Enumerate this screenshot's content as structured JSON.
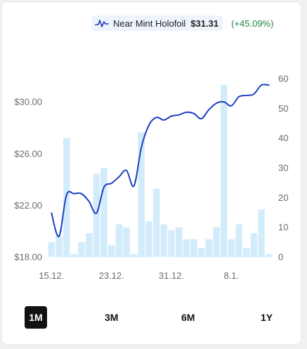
{
  "legend": {
    "series_name": "Near Mint Holofoil",
    "price": "$31.31",
    "change": "(+45.09%)",
    "icon": "line-chart-icon"
  },
  "ranges": {
    "items": [
      "1M",
      "3M",
      "6M",
      "1Y"
    ],
    "selected": "1M"
  },
  "colors": {
    "line": "#1d3fbf",
    "bar": "#d3ecfb",
    "active_button": "#111111",
    "change_positive": "#1b8a3c"
  },
  "chart_data": {
    "type": "line+bar",
    "x_ticks": [
      "15.12.",
      "23.12.",
      "31.12.",
      "8.1."
    ],
    "y_left": {
      "ticks": [
        "$18.00",
        "$22.00",
        "$26.00",
        "$30.00"
      ],
      "tick_values": [
        18,
        22,
        26,
        30
      ],
      "range": [
        18,
        31.8
      ]
    },
    "y_right": {
      "ticks": [
        "0",
        "10",
        "20",
        "30",
        "40",
        "50",
        "60"
      ],
      "tick_values": [
        0,
        10,
        20,
        30,
        40,
        50,
        60
      ],
      "range": [
        0,
        60
      ]
    },
    "series": [
      {
        "name": "Near Mint Holofoil",
        "kind": "line",
        "axis": "left",
        "values": [
          21.4,
          19.6,
          22.8,
          22.9,
          22.9,
          22.3,
          21.4,
          23.4,
          23.7,
          24.2,
          24.7,
          23.5,
          26.5,
          28.2,
          28.8,
          28.6,
          28.9,
          29.0,
          29.2,
          29.1,
          28.7,
          29.4,
          29.9,
          30.0,
          29.7,
          30.4,
          30.5,
          30.6,
          31.3,
          31.3
        ]
      },
      {
        "name": "",
        "kind": "bar",
        "axis": "right",
        "values": [
          5,
          7,
          40,
          1,
          5,
          8,
          28,
          30,
          4,
          11,
          10,
          1,
          42,
          12,
          23,
          11,
          9,
          10,
          6,
          6,
          3,
          6,
          10,
          58,
          6,
          11,
          3,
          8,
          16,
          1
        ]
      }
    ],
    "grid": false,
    "legend_position": "top-right"
  }
}
